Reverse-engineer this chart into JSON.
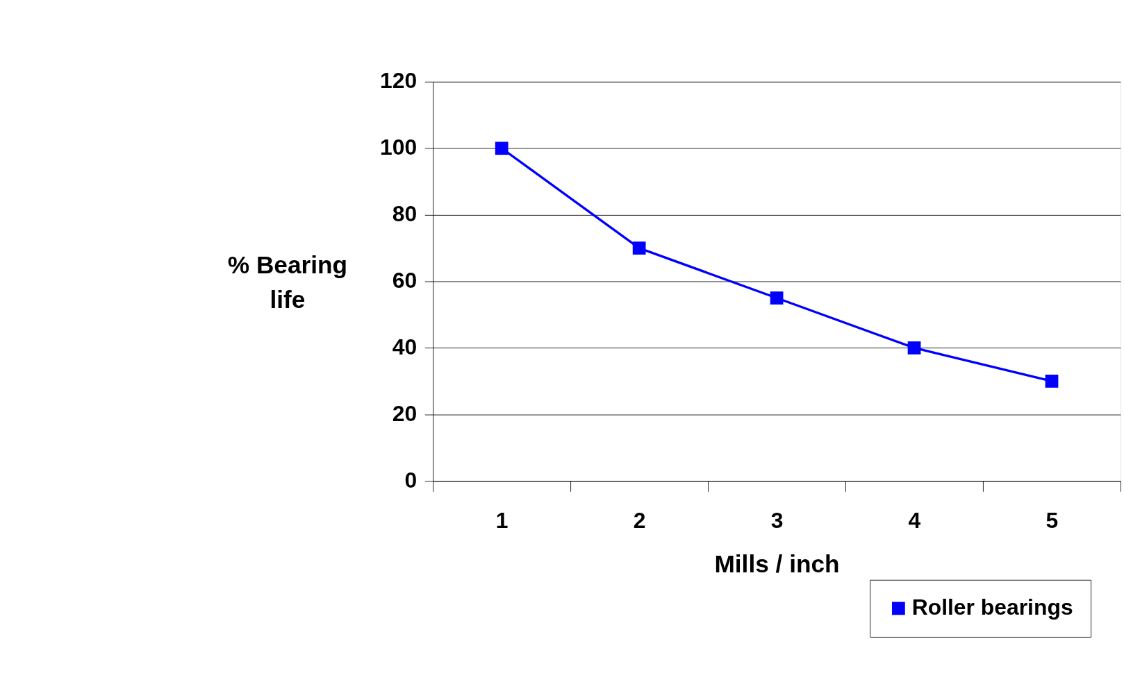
{
  "chart_data": {
    "type": "line",
    "xlabel": "Mills / inch",
    "ylabel": "% Bearing life",
    "categories": [
      "1",
      "2",
      "3",
      "4",
      "5"
    ],
    "series": [
      {
        "name": "Roller bearings",
        "color": "#0000ff",
        "values": [
          100,
          70,
          55,
          40,
          30
        ]
      }
    ],
    "ylim": [
      0,
      120
    ],
    "yticks": [
      0,
      20,
      40,
      60,
      80,
      100,
      120
    ],
    "grid": "y",
    "legend": "bottom right",
    "marker": "square",
    "line_style": "solid"
  }
}
